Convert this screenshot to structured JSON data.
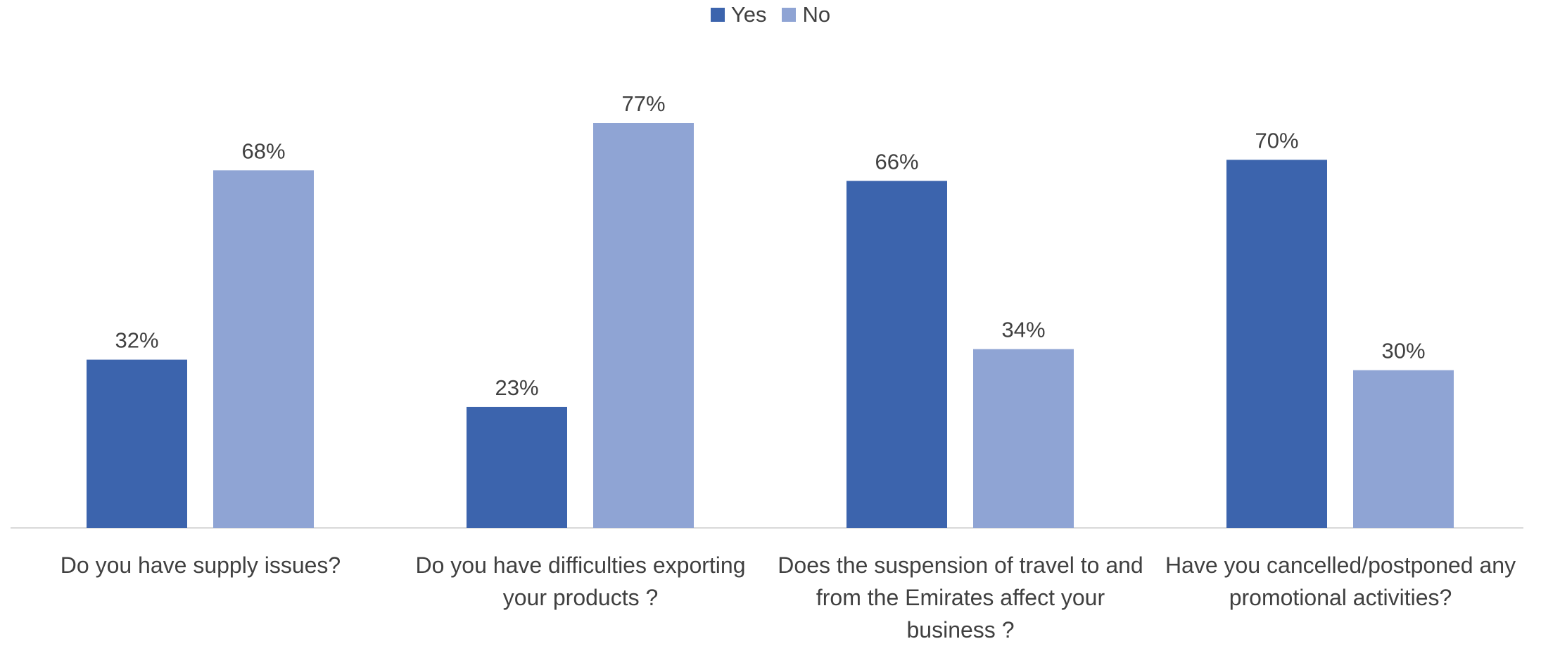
{
  "chart_data": {
    "type": "bar",
    "categories": [
      "Do you have supply issues?",
      "Do you have difficulties exporting your products ?",
      "Does the suspension of travel to and from the Emirates affect your business ?",
      "Have you cancelled/postponed any promotional activities?"
    ],
    "series": [
      {
        "name": "Yes",
        "values": [
          32,
          23,
          66,
          70
        ],
        "labels": [
          "32%",
          "23%",
          "66%",
          "70%"
        ],
        "color": "#3C64AD"
      },
      {
        "name": "No",
        "values": [
          68,
          77,
          34,
          30
        ],
        "labels": [
          "68%",
          "77%",
          "34%",
          "30%"
        ],
        "color": "#8FA4D4"
      }
    ],
    "ylim": [
      0,
      100
    ],
    "grid": false,
    "legend_position": "top-center",
    "axis_color": "#D9D9D9",
    "label_color": "#404040"
  }
}
